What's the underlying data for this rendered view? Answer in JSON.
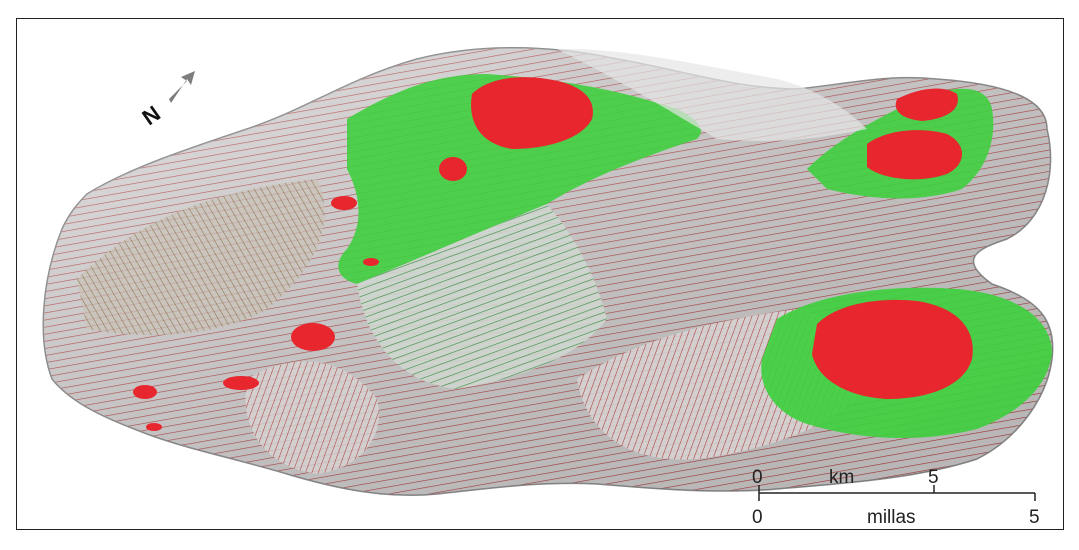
{
  "north_arrow": {
    "label": "N",
    "icon": "north-arrow-icon",
    "color": "#7d7d7d"
  },
  "scale_bar": {
    "top_unit": "km",
    "top_ticks": [
      "0",
      "5"
    ],
    "bottom_unit": "millas",
    "bottom_ticks": [
      "0",
      "5"
    ]
  },
  "colors": {
    "terrain": "#dcdcdc",
    "flow_lines": "#b52a2a",
    "green_zone": "#3fcf3f",
    "red_zone": "#e8262e",
    "frame": "#222222"
  }
}
